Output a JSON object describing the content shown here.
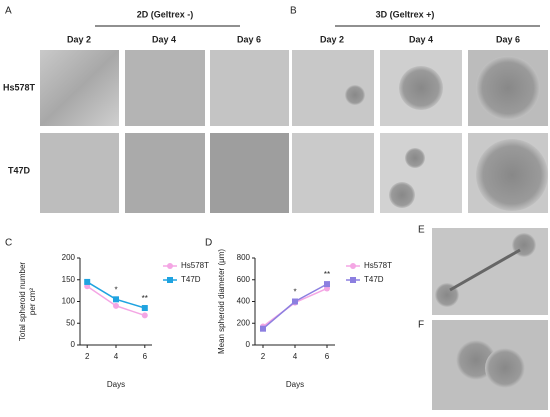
{
  "panels": {
    "A": "A",
    "B": "B",
    "C": "C",
    "D": "D",
    "E": "E",
    "F": "F",
    "group_2d": "2D (Geltrex -)",
    "group_3d": "3D (Geltrex +)",
    "days_2d": [
      "Day 2",
      "Day 4",
      "Day 6"
    ],
    "days_3d": [
      "Day 2",
      "Day 4",
      "Day 6"
    ],
    "rows": [
      "Hs578T",
      "T47D"
    ]
  },
  "chart_data": [
    {
      "type": "line",
      "ylabel": [
        "Total spheroid number",
        "per cm²"
      ],
      "xlabel": "Days",
      "x": [
        2,
        4,
        6
      ],
      "xlim": [
        1.5,
        6.5
      ],
      "xticks": [
        2,
        4,
        6
      ],
      "ylim": [
        0,
        200
      ],
      "yticks": [
        0,
        50,
        100,
        150,
        200
      ],
      "series": [
        {
          "name": "Hs578T",
          "color": "#f4a6e4",
          "values": [
            135,
            90,
            68
          ]
        },
        {
          "name": "T47D",
          "color": "#1fa3e0",
          "values": [
            145,
            105,
            85
          ]
        }
      ],
      "annotations": [
        {
          "text": "*",
          "x": 4
        },
        {
          "text": "**",
          "x": 6
        }
      ]
    },
    {
      "type": "line",
      "ylabel": [
        "Mean spheroid diameter (μm)"
      ],
      "xlabel": "Days",
      "x": [
        2,
        4,
        6
      ],
      "xlim": [
        1.5,
        6.5
      ],
      "xticks": [
        2,
        4,
        6
      ],
      "ylim": [
        0,
        800
      ],
      "yticks": [
        0,
        200,
        400,
        600,
        800
      ],
      "series": [
        {
          "name": "Hs578T",
          "color": "#f4a6e4",
          "values": [
            170,
            390,
            520
          ]
        },
        {
          "name": "T47D",
          "color": "#8c7fe0",
          "values": [
            150,
            400,
            560
          ]
        }
      ],
      "annotations": [
        {
          "text": "*",
          "x": 4
        },
        {
          "text": "**",
          "x": 6
        }
      ]
    }
  ]
}
